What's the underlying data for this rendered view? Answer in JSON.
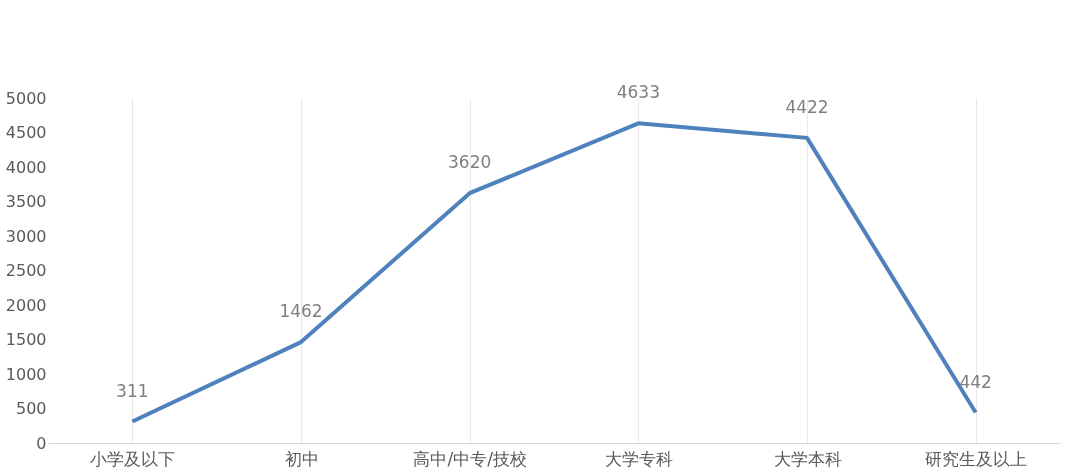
{
  "chart_data": {
    "type": "line",
    "categories": [
      "小学及以下",
      "初中",
      "高中/中专/技校",
      "大学专科",
      "大学本科",
      "研究生及以上"
    ],
    "series": [
      {
        "color": "#4f81bd",
        "values": [
          311,
          1462,
          3620,
          4633,
          4422,
          442
        ]
      }
    ],
    "ylim": [
      0,
      5000
    ],
    "yticks": [
      0,
      500,
      1000,
      1500,
      2000,
      2500,
      3000,
      3500,
      4000,
      4500,
      5000
    ],
    "grid": "x",
    "data_labels": true,
    "marker": "none",
    "line_style": "solid"
  }
}
